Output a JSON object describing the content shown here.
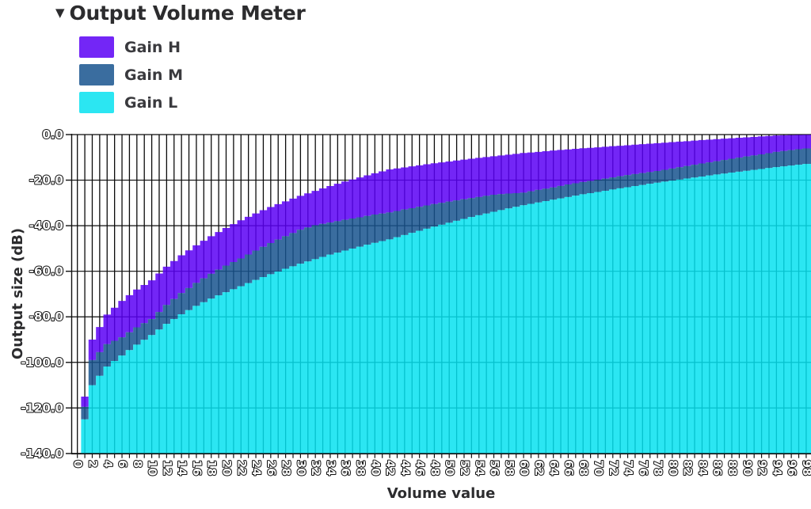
{
  "header": {
    "collapse_marker": "▼",
    "title": "Output Volume Meter"
  },
  "legend": [
    {
      "label": "Gain H",
      "color": "#5a00f5"
    },
    {
      "label": "Gain M",
      "color": "#17548e"
    },
    {
      "label": "Gain L",
      "color": "#06e2f0"
    }
  ],
  "axes": {
    "xlabel": "Volume value",
    "ylabel": "Output size (dB)"
  },
  "style": {
    "background": "#ffffff",
    "grid_color": "#0b0b0b",
    "spine_color": "#111111",
    "text_color": "#2c2c2e",
    "tick_label_fill": "#fafafa",
    "tick_label_stroke": "#111111",
    "area_opacity": 0.85
  },
  "chart_data": {
    "type": "bar",
    "title": "Output Volume Meter",
    "xlabel": "Volume value",
    "ylabel": "Output size (dB)",
    "ylim": [
      -140,
      0
    ],
    "xlim": [
      0,
      100
    ],
    "grid": "on",
    "legend_position": "top-left",
    "ytick_values": [
      0,
      -20,
      -40,
      -60,
      -80,
      -100,
      -120,
      -140
    ],
    "ytick_labels": [
      "0.0",
      "-20.0",
      "-40.0",
      "-60.0",
      "-80.0",
      "-100.0",
      "-120.0",
      "-140.0"
    ],
    "x_ticks": [
      0,
      2,
      4,
      6,
      8,
      10,
      12,
      14,
      16,
      18,
      20,
      22,
      24,
      26,
      28,
      30,
      32,
      34,
      36,
      38,
      40,
      42,
      44,
      46,
      48,
      50,
      52,
      54,
      56,
      58,
      60,
      62,
      64,
      66,
      68,
      70,
      72,
      74,
      76,
      78,
      80,
      82,
      84,
      86,
      88,
      90,
      92,
      94,
      96,
      98
    ],
    "series": [
      {
        "name": "Gain H",
        "color": "#5a00f5",
        "values": [
          -140,
          -90,
          -79,
          -73,
          -68,
          -64,
          -58,
          -53,
          -48.6,
          -44.6,
          -41,
          -37.6,
          -34.6,
          -31.8,
          -29.3,
          -26.9,
          -24.7,
          -22.6,
          -20.6,
          -18.8,
          -17,
          -15.3,
          -14.4,
          -13.5,
          -12.6,
          -11.8,
          -11,
          -10.2,
          -9.5,
          -8.8,
          -8.1,
          -7.6,
          -7,
          -6.5,
          -6,
          -5.6,
          -5.1,
          -4.7,
          -4.2,
          -3.8,
          -3.3,
          -2.9,
          -2.4,
          -2,
          -1.6,
          -1.2,
          -0.8,
          -0.4,
          -0.2,
          -0.1
        ]
      },
      {
        "name": "Gain M",
        "color": "#17548e",
        "values": [
          -140,
          -99,
          -92,
          -89,
          -84.6,
          -81,
          -74.8,
          -69.6,
          -65.1,
          -61.1,
          -57.5,
          -54.4,
          -50.9,
          -47.6,
          -44.6,
          -41.8,
          -39.8,
          -38.6,
          -37.4,
          -36.3,
          -35.1,
          -34.2,
          -32.9,
          -31.7,
          -30.5,
          -29.4,
          -28.4,
          -27.4,
          -26.4,
          -25.9,
          -25.5,
          -24.3,
          -23.2,
          -21.9,
          -20.8,
          -19.9,
          -18.8,
          -17.8,
          -16.9,
          -16,
          -14.9,
          -13.8,
          -12.7,
          -11.7,
          -10.6,
          -9.6,
          -8.7,
          -7.6,
          -6.8,
          -6.1
        ]
      },
      {
        "name": "Gain L",
        "color": "#06e2f0",
        "values": [
          -140,
          -110,
          -101.8,
          -97,
          -92.2,
          -88,
          -83.1,
          -78.9,
          -75.2,
          -72,
          -69.2,
          -66.6,
          -63.8,
          -61.3,
          -58.9,
          -56.7,
          -54.7,
          -52.7,
          -50.9,
          -49.2,
          -47.5,
          -46,
          -44.1,
          -42.2,
          -40.4,
          -38.7,
          -37,
          -35.4,
          -33.9,
          -32.4,
          -31,
          -29.8,
          -28.6,
          -27.4,
          -26.2,
          -25.2,
          -24.1,
          -23.1,
          -22.1,
          -21.1,
          -20.2,
          -19.3,
          -18.4,
          -17.5,
          -16.7,
          -15.9,
          -15.1,
          -14.3,
          -13.6,
          -12.9
        ]
      }
    ]
  }
}
